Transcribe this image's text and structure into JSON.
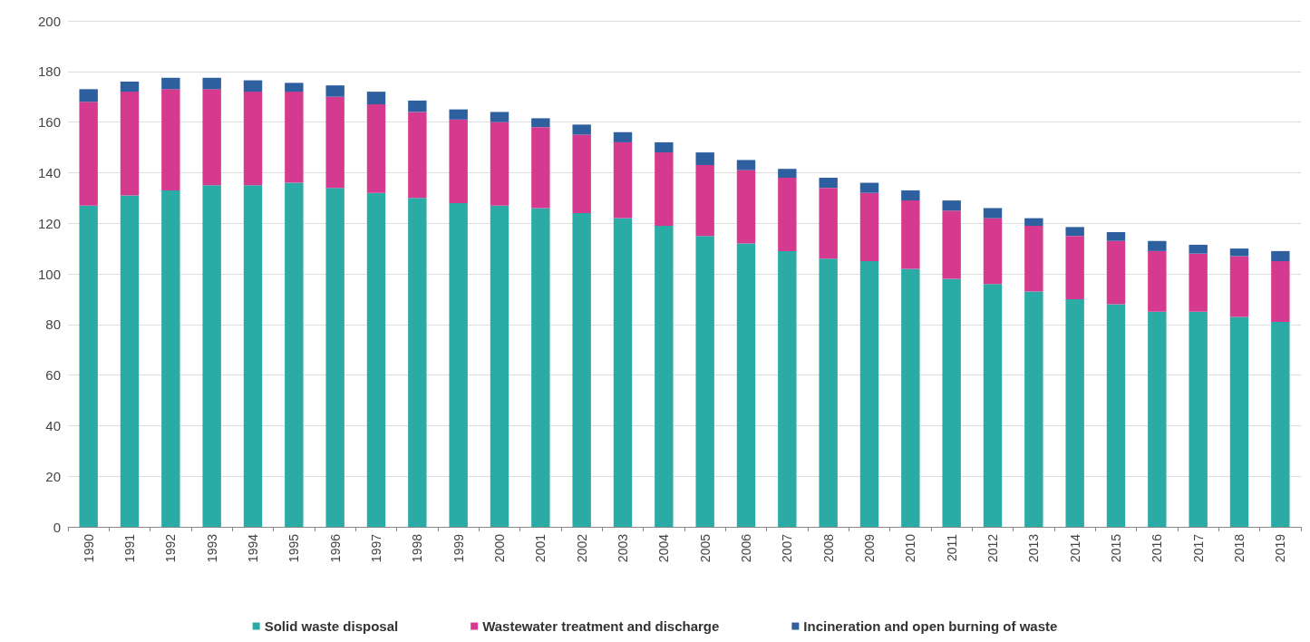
{
  "chart_data": {
    "type": "bar",
    "stacked": true,
    "categories": [
      "1990",
      "1991",
      "1992",
      "1993",
      "1994",
      "1995",
      "1996",
      "1997",
      "1998",
      "1999",
      "2000",
      "2001",
      "2002",
      "2003",
      "2004",
      "2005",
      "2006",
      "2007",
      "2008",
      "2009",
      "2010",
      "2011",
      "2012",
      "2013",
      "2014",
      "2015",
      "2016",
      "2017",
      "2018",
      "2019"
    ],
    "series": [
      {
        "name": "Solid waste disposal",
        "color": "#2aaba5",
        "values": [
          127,
          131,
          133,
          135,
          135,
          136,
          134,
          132,
          130,
          128,
          127,
          126,
          124,
          122,
          119,
          115,
          112,
          109,
          106,
          105,
          102,
          98,
          96,
          93,
          90,
          88,
          85,
          85,
          83,
          81
        ]
      },
      {
        "name": "Wastewater treatment and discharge",
        "color": "#d63a8e",
        "values": [
          41,
          41,
          40,
          38,
          37,
          36,
          36,
          35,
          34,
          33,
          33,
          32,
          31,
          30,
          29,
          28,
          29,
          29,
          28,
          27,
          27,
          27,
          26,
          26,
          25,
          25,
          24,
          23,
          24,
          24
        ]
      },
      {
        "name": "Incineration and open burning of waste",
        "color": "#2e5f9e",
        "values": [
          5,
          4,
          4.5,
          4.5,
          4.5,
          3.5,
          4.5,
          5,
          4.5,
          4,
          4,
          3.5,
          4,
          4,
          4,
          5,
          4,
          3.5,
          4,
          4,
          4,
          4,
          4,
          3,
          3.5,
          3.5,
          4,
          3.5,
          3,
          4
        ]
      }
    ],
    "ylim": [
      0,
      200
    ],
    "yticks": [
      0,
      20,
      40,
      60,
      80,
      100,
      120,
      140,
      160,
      180,
      200
    ],
    "grid": "y",
    "legend": "bottom"
  }
}
